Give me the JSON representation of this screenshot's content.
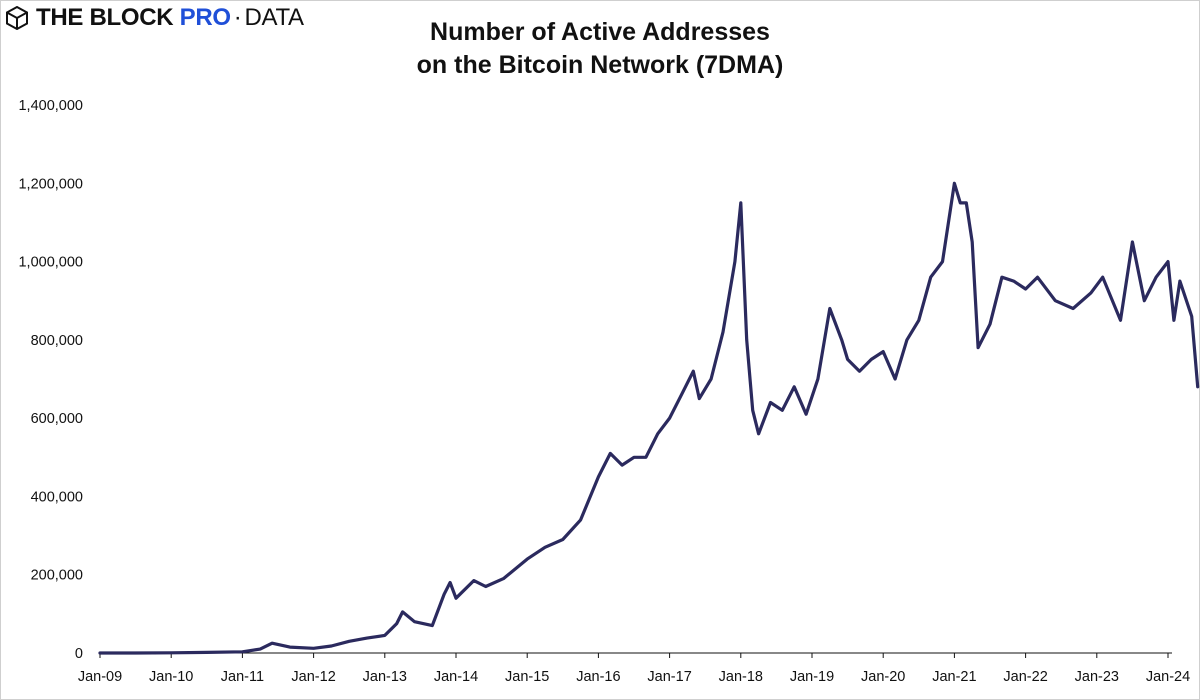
{
  "brand": {
    "block": "THE BLOCK",
    "pro": "PRO",
    "separator": "·",
    "data": "DATA",
    "pro_color": "#1f4fd8"
  },
  "chart_data": {
    "type": "line",
    "title_line1": "Number of Active Addresses",
    "title_line2": "on the Bitcoin Network (7DMA)",
    "xlabel": "",
    "ylabel": "",
    "line_color": "#2b2a5e",
    "grid": false,
    "ylim": [
      0,
      1400000
    ],
    "xlim": [
      "2009-01",
      "2024-06"
    ],
    "y_ticks": [
      "0",
      "200,000",
      "400,000",
      "600,000",
      "800,000",
      "1,000,000",
      "1,200,000",
      "1,400,000"
    ],
    "x_ticks": [
      "Jan-09",
      "Jan-10",
      "Jan-11",
      "Jan-12",
      "Jan-13",
      "Jan-14",
      "Jan-15",
      "Jan-16",
      "Jan-17",
      "Jan-18",
      "Jan-19",
      "Jan-20",
      "Jan-21",
      "Jan-22",
      "Jan-23",
      "Jan-24"
    ],
    "series": [
      {
        "x": [
          "2009-01",
          "2009-07",
          "2010-01",
          "2010-07",
          "2011-01",
          "2011-04",
          "2011-06",
          "2011-09",
          "2012-01",
          "2012-04",
          "2012-07",
          "2012-10",
          "2013-01",
          "2013-03",
          "2013-04",
          "2013-06",
          "2013-09",
          "2013-11",
          "2013-12",
          "2014-01",
          "2014-04",
          "2014-06",
          "2014-09",
          "2015-01",
          "2015-04",
          "2015-07",
          "2015-10",
          "2016-01",
          "2016-03",
          "2016-05",
          "2016-07",
          "2016-09",
          "2016-11",
          "2017-01",
          "2017-03",
          "2017-05",
          "2017-06",
          "2017-08",
          "2017-10",
          "2017-12",
          "2018-01",
          "2018-02",
          "2018-03",
          "2018-04",
          "2018-06",
          "2018-08",
          "2018-10",
          "2018-12",
          "2019-02",
          "2019-04",
          "2019-06",
          "2019-07",
          "2019-09",
          "2019-11",
          "2020-01",
          "2020-03",
          "2020-05",
          "2020-07",
          "2020-09",
          "2020-11",
          "2021-01",
          "2021-02",
          "2021-03",
          "2021-04",
          "2021-05",
          "2021-07",
          "2021-09",
          "2021-11",
          "2022-01",
          "2022-03",
          "2022-06",
          "2022-09",
          "2022-12",
          "2023-02",
          "2023-05",
          "2023-07",
          "2023-09",
          "2023-11",
          "2024-01",
          "2024-02",
          "2024-03",
          "2024-05",
          "2024-06"
        ],
        "y": [
          0,
          0,
          500,
          1500,
          3000,
          10000,
          25000,
          15000,
          12000,
          18000,
          30000,
          38000,
          45000,
          75000,
          105000,
          80000,
          70000,
          150000,
          180000,
          140000,
          185000,
          170000,
          190000,
          240000,
          270000,
          290000,
          340000,
          450000,
          510000,
          480000,
          500000,
          500000,
          560000,
          600000,
          660000,
          720000,
          650000,
          700000,
          820000,
          1000000,
          1150000,
          800000,
          620000,
          560000,
          640000,
          620000,
          680000,
          610000,
          700000,
          880000,
          800000,
          750000,
          720000,
          750000,
          770000,
          700000,
          800000,
          850000,
          960000,
          1000000,
          1200000,
          1150000,
          1150000,
          1050000,
          780000,
          840000,
          960000,
          950000,
          930000,
          960000,
          900000,
          880000,
          920000,
          960000,
          850000,
          1050000,
          900000,
          960000,
          1000000,
          850000,
          950000,
          860000,
          680000
        ]
      }
    ]
  }
}
